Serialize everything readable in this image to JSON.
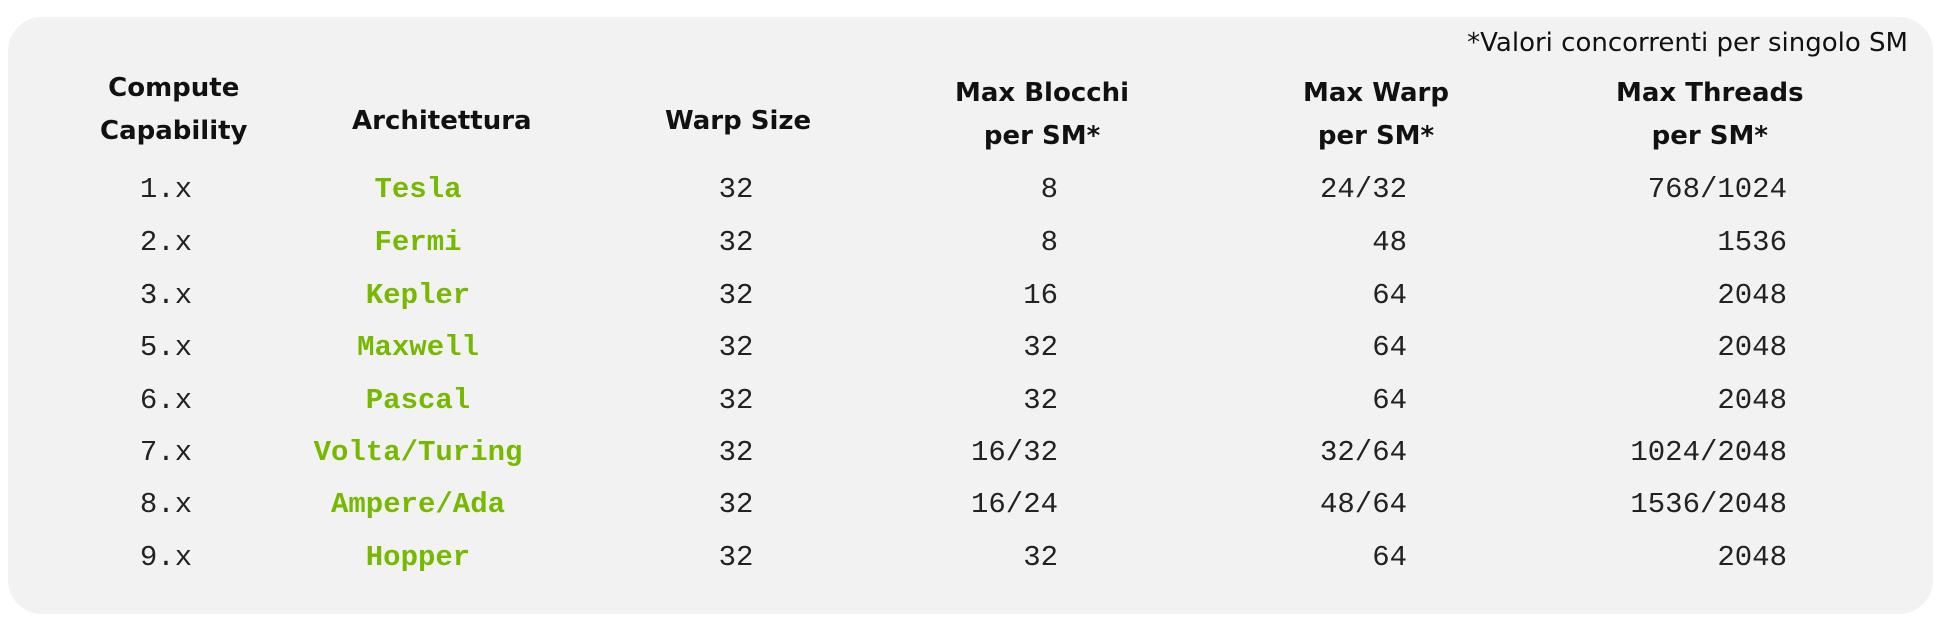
{
  "footnote": "*Valori concorrenti per singolo SM",
  "headers": {
    "compute_capability": [
      "Compute",
      "Capability"
    ],
    "architecture": "Architettura",
    "warp_size": "Warp Size",
    "max_blocks": [
      "Max Blocchi",
      "per SM*"
    ],
    "max_warps": [
      "Max Warp",
      "per SM*"
    ],
    "max_threads": [
      "Max Threads",
      "per SM*"
    ]
  },
  "accent_color": "#76b900",
  "rows": [
    {
      "cc": "1.x",
      "arch": "Tesla",
      "warp": "32",
      "blocks": "8",
      "warps": "24/32",
      "threads": "768/1024"
    },
    {
      "cc": "2.x",
      "arch": "Fermi",
      "warp": "32",
      "blocks": "8",
      "warps": "48",
      "threads": "1536"
    },
    {
      "cc": "3.x",
      "arch": "Kepler",
      "warp": "32",
      "blocks": "16",
      "warps": "64",
      "threads": "2048"
    },
    {
      "cc": "5.x",
      "arch": "Maxwell",
      "warp": "32",
      "blocks": "32",
      "warps": "64",
      "threads": "2048"
    },
    {
      "cc": "6.x",
      "arch": "Pascal",
      "warp": "32",
      "blocks": "32",
      "warps": "64",
      "threads": "2048"
    },
    {
      "cc": "7.x",
      "arch": "Volta/Turing",
      "warp": "32",
      "blocks": "16/32",
      "warps": "32/64",
      "threads": "1024/2048"
    },
    {
      "cc": "8.x",
      "arch": "Ampere/Ada",
      "warp": "32",
      "blocks": "16/24",
      "warps": "48/64",
      "threads": "1536/2048"
    },
    {
      "cc": "9.x",
      "arch": "Hopper",
      "warp": "32",
      "blocks": "32",
      "warps": "64",
      "threads": "2048"
    }
  ]
}
